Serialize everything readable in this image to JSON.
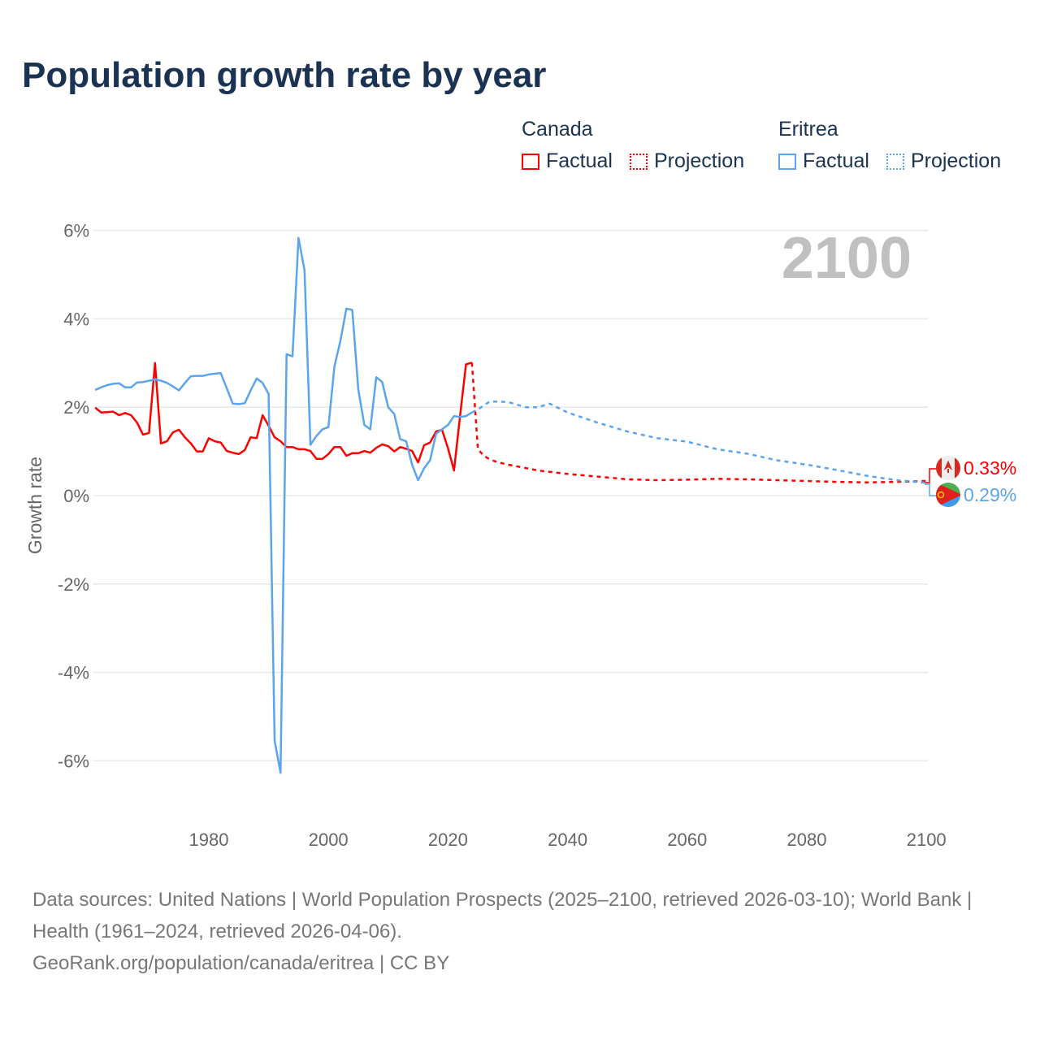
{
  "title": "Population growth rate by year",
  "legend": {
    "groups": [
      {
        "name": "Canada",
        "factual": "Factual",
        "projection": "Projection",
        "color": "#ff0000"
      },
      {
        "name": "Eritrea",
        "factual": "Factual",
        "projection": "Projection",
        "color": "#5ba4ee"
      }
    ]
  },
  "footer": {
    "sources": "Data sources: United Nations | World Population Prospects (2025–2100, retrieved 2026-03-10); World Bank | Health (1961–2024, retrieved 2026-04-06).",
    "credit": "GeoRank.org/population/canada/eritrea | CC BY"
  },
  "chart_data": {
    "type": "line",
    "title": "Population growth rate by year",
    "ylabel": "Growth rate",
    "xlabel": "",
    "current_year_label": "2100",
    "xlim": [
      1961,
      2100
    ],
    "ylim": [
      -7,
      6.5
    ],
    "x_ticks": [
      "1980",
      "2000",
      "2020",
      "2040",
      "2060",
      "2080",
      "2100"
    ],
    "y_ticks": [
      "6%",
      "4%",
      "2%",
      "0%",
      "-2%",
      "-4%",
      "-6%"
    ],
    "y_tick_values": [
      6,
      4,
      2,
      0,
      -2,
      -4,
      -6
    ],
    "grid": true,
    "series": [
      {
        "name": "Canada",
        "color": "#ff0000",
        "end_label": "0.33%",
        "factual": {
          "start_year": 1961,
          "values": [
            1.99,
            1.88,
            1.89,
            1.9,
            1.82,
            1.87,
            1.82,
            1.65,
            1.38,
            1.42,
            3.0,
            1.18,
            1.23,
            1.43,
            1.49,
            1.32,
            1.18,
            1.0,
            1.0,
            1.3,
            1.23,
            1.2,
            1.01,
            0.97,
            0.94,
            1.03,
            1.32,
            1.3,
            1.82,
            1.58,
            1.32,
            1.23,
            1.1,
            1.1,
            1.05,
            1.05,
            1.01,
            0.83,
            0.83,
            0.94,
            1.1,
            1.1,
            0.9,
            0.96,
            0.96,
            1.01,
            0.97,
            1.08,
            1.16,
            1.12,
            1.0,
            1.1,
            1.06,
            1.01,
            0.75,
            1.14,
            1.2,
            1.45,
            1.49,
            1.07,
            0.57,
            1.78,
            2.97,
            3.01
          ]
        },
        "projection": {
          "years": [
            2024,
            2025,
            2026,
            2027,
            2028,
            2030,
            2032,
            2035,
            2040,
            2045,
            2050,
            2055,
            2060,
            2065,
            2070,
            2075,
            2080,
            2085,
            2090,
            2095,
            2100
          ],
          "values": [
            3.01,
            1.05,
            0.9,
            0.82,
            0.77,
            0.7,
            0.65,
            0.57,
            0.49,
            0.43,
            0.37,
            0.35,
            0.36,
            0.38,
            0.37,
            0.35,
            0.33,
            0.31,
            0.3,
            0.31,
            0.33
          ]
        }
      },
      {
        "name": "Eritrea",
        "color": "#5ba4ee",
        "end_label": "0.29%",
        "factual": {
          "start_year": 1961,
          "values": [
            2.39,
            2.45,
            2.5,
            2.53,
            2.54,
            2.45,
            2.45,
            2.56,
            2.57,
            2.6,
            2.63,
            2.6,
            2.55,
            2.47,
            2.38,
            2.55,
            2.7,
            2.71,
            2.71,
            2.74,
            2.76,
            2.77,
            2.43,
            2.08,
            2.07,
            2.09,
            2.38,
            2.65,
            2.55,
            2.3,
            -5.55,
            -6.27,
            3.2,
            3.15,
            5.83,
            5.1,
            1.15,
            1.35,
            1.5,
            1.55,
            2.92,
            3.5,
            4.23,
            4.2,
            2.4,
            1.6,
            1.5,
            2.68,
            2.57,
            2.0,
            1.85,
            1.28,
            1.23,
            0.7,
            0.35,
            0.62,
            0.8,
            1.4,
            1.5,
            1.6,
            1.8,
            1.78,
            1.8,
            1.88
          ]
        },
        "projection": {
          "years": [
            2024,
            2025,
            2027,
            2030,
            2033,
            2035,
            2037,
            2040,
            2045,
            2050,
            2055,
            2060,
            2065,
            2070,
            2075,
            2080,
            2085,
            2090,
            2095,
            2100
          ],
          "values": [
            1.88,
            1.95,
            2.13,
            2.12,
            2.0,
            2.0,
            2.08,
            1.88,
            1.65,
            1.45,
            1.3,
            1.22,
            1.05,
            0.95,
            0.8,
            0.7,
            0.58,
            0.45,
            0.35,
            0.29
          ]
        }
      }
    ]
  }
}
